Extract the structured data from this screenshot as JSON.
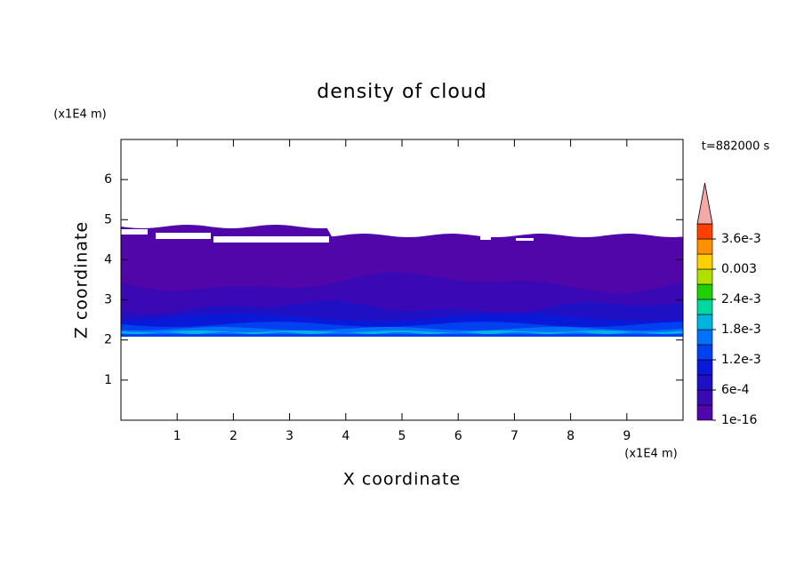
{
  "chart_data": {
    "type": "contour",
    "title": "density of cloud",
    "x_label": "X coordinate",
    "y_label": "Z coordinate",
    "x_unit": "(x1E4 m)",
    "y_unit": "(x1E4 m)",
    "time_label": "t=882000 s",
    "xlim": [
      0,
      10
    ],
    "ylim": [
      0,
      7
    ],
    "xticks": [
      1,
      2,
      3,
      4,
      5,
      6,
      7,
      8,
      9
    ],
    "yticks": [
      1,
      2,
      3,
      4,
      5,
      6
    ],
    "colorbar": {
      "levels": [
        1e-16,
        0.0003,
        0.0006,
        0.0009,
        0.0012,
        0.0015,
        0.0018,
        0.0021,
        0.0024,
        0.0027,
        0.003,
        0.0033,
        0.0036
      ],
      "colors": [
        "#5006a8",
        "#3a08b4",
        "#2010c4",
        "#0a18d8",
        "#0040f0",
        "#0070ff",
        "#00b4e0",
        "#00d8a0",
        "#20d000",
        "#b0e000",
        "#ffd000",
        "#ff9000",
        "#ff4000"
      ],
      "extend_color": "#f4a8a8",
      "ticks": [
        1e-16,
        {
          "value": 0.0006,
          "label": "6e-4"
        },
        {
          "value": 0.0012,
          "label": "1.2e-3"
        },
        {
          "value": 0.0018,
          "label": "1.8e-3"
        },
        {
          "value": 0.0024,
          "label": "2.4e-3"
        },
        0.003,
        {
          "value": 0.0036,
          "label": "3.6e-3"
        }
      ]
    }
  }
}
